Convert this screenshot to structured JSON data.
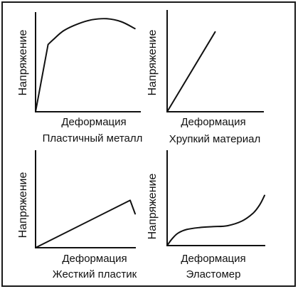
{
  "chart_data": [
    {
      "type": "line",
      "caption": "Пластичный металл",
      "xlabel": "Деформация",
      "ylabel": "Напряжение",
      "xlim": [
        0,
        100
      ],
      "ylim": [
        0,
        100
      ],
      "grid": false,
      "series": [
        {
          "x": [
            0,
            12,
            17,
            27,
            41,
            54,
            68,
            82,
            95
          ],
          "y": [
            0,
            68,
            73,
            82,
            89,
            93,
            94,
            91,
            84
          ]
        }
      ]
    },
    {
      "type": "line",
      "caption": "Хрупкий материал",
      "xlabel": "Деформация",
      "ylabel": "Напряжение",
      "xlim": [
        0,
        100
      ],
      "ylim": [
        0,
        100
      ],
      "grid": false,
      "series": [
        {
          "x": [
            0,
            50
          ],
          "y": [
            0,
            79
          ]
        }
      ]
    },
    {
      "type": "line",
      "caption": "Жесткий пластик",
      "xlabel": "Деформация",
      "ylabel": "Напряжение",
      "xlim": [
        0,
        100
      ],
      "ylim": [
        0,
        100
      ],
      "grid": false,
      "series": [
        {
          "x": [
            0,
            95,
            100
          ],
          "y": [
            0,
            49,
            35
          ]
        }
      ]
    },
    {
      "type": "line",
      "caption": "Эластомер",
      "xlabel": "Деформация",
      "ylabel": "Напряжение",
      "xlim": [
        0,
        100
      ],
      "ylim": [
        0,
        100
      ],
      "grid": false,
      "series": [
        {
          "x": [
            0,
            5,
            11,
            20,
            33,
            47,
            62,
            77,
            88,
            95,
            100
          ],
          "y": [
            0,
            7,
            13,
            17,
            19,
            20,
            21,
            26,
            34,
            43,
            53
          ]
        }
      ]
    }
  ],
  "colors": {
    "ink": "#111111",
    "background": "#ffffff"
  }
}
